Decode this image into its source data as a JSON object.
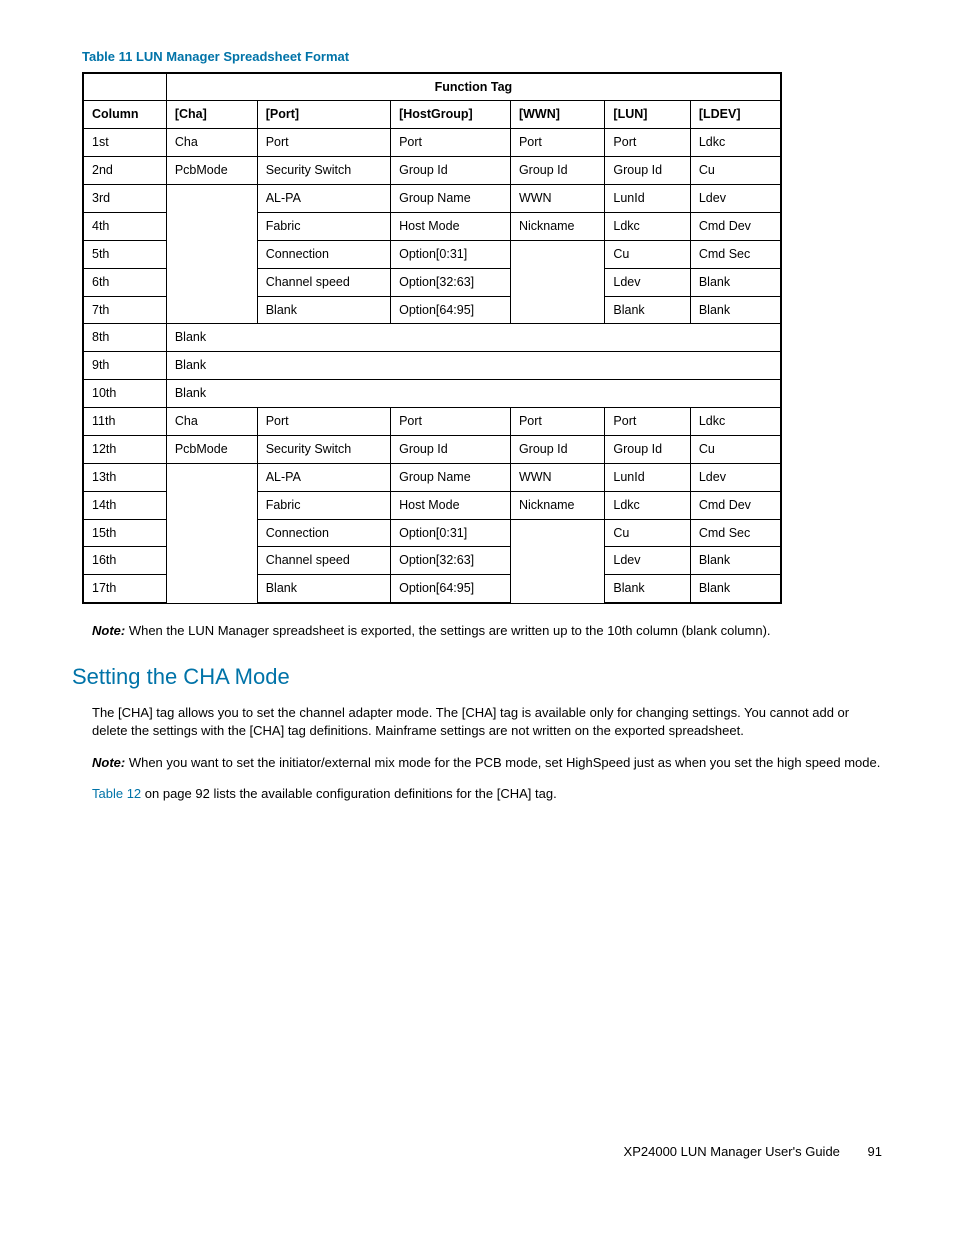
{
  "table_title": "Table 11 LUN Manager Spreadsheet Format",
  "function_tag_label": "Function Tag",
  "headers": {
    "col": "Column",
    "cha": "[Cha]",
    "port": "[Port]",
    "hostgroup": "[HostGroup]",
    "wwn": "[WWN]",
    "lun": "[LUN]",
    "ldev": "[LDEV]"
  },
  "rows": {
    "r1": {
      "col": "1st",
      "cha": "Cha",
      "port": "Port",
      "hg": "Port",
      "wwn": "Port",
      "lun": "Port",
      "ldev": "Ldkc"
    },
    "r2": {
      "col": "2nd",
      "cha": "PcbMode",
      "port": "Security Switch",
      "hg": "Group Id",
      "wwn": "Group Id",
      "lun": "Group Id",
      "ldev": "Cu"
    },
    "r3": {
      "col": "3rd",
      "port": "AL-PA",
      "hg": "Group Name",
      "wwn": "WWN",
      "lun": "LunId",
      "ldev": "Ldev"
    },
    "r4": {
      "col": "4th",
      "port": "Fabric",
      "hg": "Host Mode",
      "wwn": "Nickname",
      "lun": "Ldkc",
      "ldev": "Cmd Dev"
    },
    "blank_merge_3_7": "Blank",
    "r5": {
      "col": "5th",
      "port": "Connection",
      "hg": "Option[0:31]",
      "lun": "Cu",
      "ldev": "Cmd Sec"
    },
    "blank_merge_wwn_5_7": "Blank",
    "r6": {
      "col": "6th",
      "port": "Channel speed",
      "hg": "Option[32:63]",
      "lun": "Ldev",
      "ldev": "Blank"
    },
    "r7": {
      "col": "7th",
      "port": "Blank",
      "hg": "Option[64:95]",
      "lun": "Blank",
      "ldev": "Blank"
    },
    "r8": {
      "col": "8th",
      "span": "Blank"
    },
    "r9": {
      "col": "9th",
      "span": "Blank"
    },
    "r10": {
      "col": "10th",
      "span": "Blank"
    },
    "r11": {
      "col": "11th",
      "cha": "Cha",
      "port": "Port",
      "hg": "Port",
      "wwn": "Port",
      "lun": "Port",
      "ldev": "Ldkc"
    },
    "r12": {
      "col": "12th",
      "cha": "PcbMode",
      "port": "Security Switch",
      "hg": "Group Id",
      "wwn": "Group Id",
      "lun": "Group Id",
      "ldev": "Cu"
    },
    "r13": {
      "col": "13th",
      "port": "AL-PA",
      "hg": "Group Name",
      "wwn": "WWN",
      "lun": "LunId",
      "ldev": "Ldev"
    },
    "r14": {
      "col": "14th",
      "port": "Fabric",
      "hg": "Host Mode",
      "wwn": "Nickname",
      "lun": "Ldkc",
      "ldev": "Cmd Dev"
    },
    "blank_merge_13_17": "Blank",
    "r15": {
      "col": "15th",
      "port": "Connection",
      "hg": "Option[0:31]",
      "lun": "Cu",
      "ldev": "Cmd Sec"
    },
    "blank_merge_wwn_15_17": "Blank",
    "r16": {
      "col": "16th",
      "port": "Channel speed",
      "hg": "Option[32:63]",
      "lun": "Ldev",
      "ldev": "Blank"
    },
    "r17": {
      "col": "17th",
      "port": "Blank",
      "hg": "Option[64:95]",
      "lun": "Blank",
      "ldev": "Blank"
    }
  },
  "note1_label": "Note:",
  "note1_text": " When the LUN Manager spreadsheet is exported, the settings are written up to the 10th column (blank column).",
  "section_heading": "Setting the CHA Mode",
  "para1": "The [CHA] tag allows you to set the channel adapter mode. The [CHA] tag is available only for changing settings. You cannot add or delete the settings with the [CHA] tag definitions. Mainframe settings are not written on the exported spreadsheet.",
  "note2_label": "Note:",
  "note2_text": " When you want to set the initiator/external mix mode for the PCB mode, set HighSpeed just as when you set the high speed mode.",
  "xref_text": "Table 12",
  "para3_tail": " on page 92 lists the available configuration definitions for the [CHA] tag.",
  "footer_doc": "XP24000 LUN Manager User's Guide",
  "footer_page": "91",
  "colors": {
    "accent": "#0073a8",
    "text": "#000000",
    "background": "#ffffff"
  }
}
